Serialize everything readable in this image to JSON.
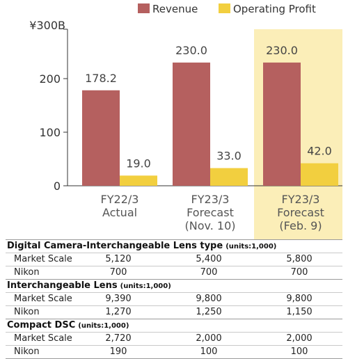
{
  "chart_data": {
    "type": "bar",
    "title": "",
    "xlabel": "",
    "ylabel": "",
    "y_unit_label": "¥300B",
    "ylim": [
      0,
      300
    ],
    "yticks": [
      0,
      100,
      200
    ],
    "categories": [
      [
        "FY22/3",
        "Actual"
      ],
      [
        "FY23/3",
        "Forecast",
        "(Nov. 10)"
      ],
      [
        "FY23/3",
        "Forecast",
        "(Feb. 9)"
      ]
    ],
    "series": [
      {
        "name": "Revenue",
        "color": "#b5605f",
        "values": [
          178.2,
          230.0,
          230.0
        ],
        "labels": [
          "178.2",
          "230.0",
          "230.0"
        ]
      },
      {
        "name": "Operating Profit",
        "color": "#f2cf3f",
        "values": [
          19.0,
          33.0,
          42.0
        ],
        "labels": [
          "19.0",
          "33.0",
          "42.0"
        ]
      }
    ],
    "legend_position": "top-right",
    "highlight_category_index": 2,
    "highlight_color": "#fbeeb8",
    "grid": false
  },
  "table": {
    "sections": [
      {
        "title": "Digital Camera-Interchangeable Lens type",
        "units": "(units:1,000)",
        "rows": [
          {
            "label": "Market Scale",
            "values": [
              "5,120",
              "5,400",
              "5,800"
            ]
          },
          {
            "label": "Nikon",
            "values": [
              "700",
              "700",
              "700"
            ]
          }
        ]
      },
      {
        "title": "Interchangeable Lens",
        "units": "(units:1,000)",
        "rows": [
          {
            "label": "Market Scale",
            "values": [
              "9,390",
              "9,800",
              "9,800"
            ]
          },
          {
            "label": "Nikon",
            "values": [
              "1,270",
              "1,250",
              "1,150"
            ]
          }
        ]
      },
      {
        "title": "Compact DSC",
        "units": "(units:1,000)",
        "rows": [
          {
            "label": "Market Scale",
            "values": [
              "2,720",
              "2,000",
              "2,000"
            ]
          },
          {
            "label": "Nikon",
            "values": [
              "190",
              "100",
              "100"
            ]
          }
        ]
      }
    ]
  }
}
